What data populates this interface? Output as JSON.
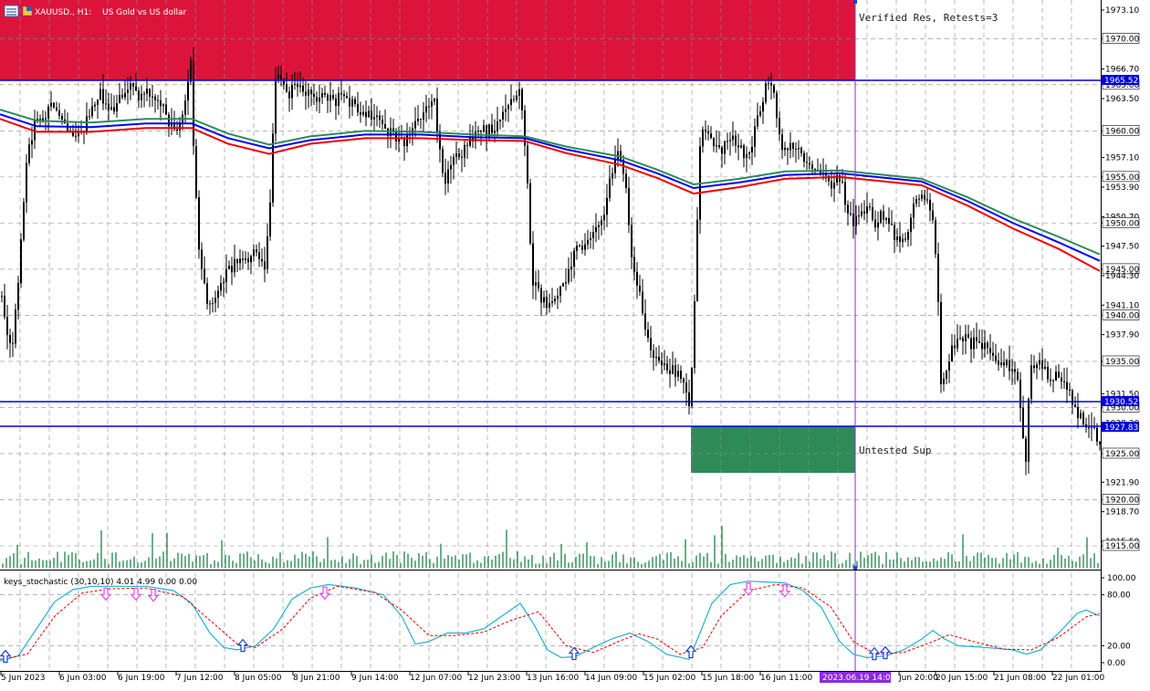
{
  "title_bar": {
    "symbol": "XAUUSD., H1:",
    "description": "US Gold vs US dollar",
    "menu_icon": "chart-menu-icon"
  },
  "colors": {
    "background": "#ffffff",
    "grid": "#8c8c8c",
    "candle": "#000000",
    "resistance_zone": "#dc143c",
    "support_zone": "#2e8b57",
    "level_line": "#0000dd",
    "price_label_bg": "#0000dd",
    "ma_green": "#2e8b57",
    "ma_blue": "#0000ff",
    "ma_red": "#ee0000",
    "volume": "#2e8b57",
    "stoch_main": "#20b2d0",
    "stoch_signal": "#e00000",
    "arrow_up": "#1e3fd0",
    "arrow_down": "#ee44ee",
    "vline": "#8a2be2"
  },
  "zones": {
    "resistance_label": "Verified Res, Retests=3",
    "support_label": "Untested Sup"
  },
  "price_labels": {
    "res_level": "1965.52",
    "sup_level_upper": "1930.52",
    "sup_level_lower": "1927.83"
  },
  "price_axis": {
    "ticks": [
      "1973.10",
      "1970.00",
      "1966.70",
      "1965.00",
      "1963.50",
      "1960.00",
      "1957.10",
      "1955.00",
      "1953.90",
      "1950.70",
      "1950.00",
      "1947.50",
      "1945.00",
      "1944.30",
      "1941.10",
      "1940.00",
      "1937.90",
      "1935.00",
      "1931.50",
      "1930.00",
      "1928.30",
      "1925.00",
      "1921.90",
      "1920.00",
      "1918.70",
      "1915.50",
      "1915.00"
    ]
  },
  "time_axis": {
    "labels": [
      "5 Jun 2023",
      "6 Jun 03:00",
      "6 Jun 19:00",
      "7 Jun 12:00",
      "8 Jun 05:00",
      "8 Jun 21:00",
      "9 Jun 14:00",
      "12 Jun 07:00",
      "12 Jun 23:00",
      "13 Jun 16:00",
      "14 Jun 09:00",
      "15 Jun 02:00",
      "15 Jun 18:00",
      "16 Jun 11:00",
      "2023.06.19 14:00",
      "Jun 20:00",
      "20 Jun 15:00",
      "21 Jun 08:00",
      "22 Jun 01:00"
    ]
  },
  "stochastic": {
    "label": "keys_stochastic (30,10,10) 4.01 4.99 0.00 0.00",
    "axis": [
      "100.00",
      "80.00",
      "20.00",
      "0.00"
    ]
  },
  "chart_data": {
    "type": "candlestick",
    "symbol": "XAUUSD.",
    "timeframe": "H1",
    "ylim": [
      1913.0,
      1974.5
    ],
    "levels": {
      "resistance_zone": [
        1965.52,
        1974.5
      ],
      "support_zone": [
        1922.8,
        1927.83
      ],
      "lines": [
        1965.52,
        1930.52,
        1927.83
      ]
    },
    "close_path": [
      [
        0,
        1942
      ],
      [
        6,
        1939
      ],
      [
        12,
        1935
      ],
      [
        20,
        1945
      ],
      [
        28,
        1957
      ],
      [
        38,
        1961
      ],
      [
        50,
        1962
      ],
      [
        60,
        1963
      ],
      [
        70,
        1961
      ],
      [
        80,
        1960
      ],
      [
        90,
        1960
      ],
      [
        100,
        1963
      ],
      [
        110,
        1964
      ],
      [
        120,
        1962
      ],
      [
        130,
        1964
      ],
      [
        140,
        1965
      ],
      [
        150,
        1964
      ],
      [
        160,
        1964
      ],
      [
        170,
        1963
      ],
      [
        180,
        1962
      ],
      [
        190,
        1960
      ],
      [
        200,
        1962
      ],
      [
        208,
        1967
      ],
      [
        212,
        1956
      ],
      [
        218,
        1946
      ],
      [
        225,
        1942
      ],
      [
        232,
        1941
      ],
      [
        240,
        1943
      ],
      [
        250,
        1945
      ],
      [
        260,
        1946
      ],
      [
        270,
        1946
      ],
      [
        280,
        1947
      ],
      [
        290,
        1945
      ],
      [
        296,
        1954
      ],
      [
        300,
        1966
      ],
      [
        306,
        1966
      ],
      [
        315,
        1964
      ],
      [
        325,
        1965
      ],
      [
        335,
        1964
      ],
      [
        345,
        1963
      ],
      [
        355,
        1964
      ],
      [
        365,
        1963
      ],
      [
        375,
        1964
      ],
      [
        385,
        1963
      ],
      [
        395,
        1962
      ],
      [
        405,
        1962
      ],
      [
        415,
        1961
      ],
      [
        425,
        1960
      ],
      [
        435,
        1959
      ],
      [
        445,
        1959
      ],
      [
        455,
        1961
      ],
      [
        465,
        1962
      ],
      [
        475,
        1963
      ],
      [
        485,
        1954
      ],
      [
        492,
        1956
      ],
      [
        500,
        1957
      ],
      [
        510,
        1958
      ],
      [
        520,
        1960
      ],
      [
        530,
        1960
      ],
      [
        540,
        1960
      ],
      [
        550,
        1962
      ],
      [
        560,
        1963
      ],
      [
        568,
        1965
      ],
      [
        576,
        1956
      ],
      [
        582,
        1944
      ],
      [
        590,
        1942
      ],
      [
        598,
        1941
      ],
      [
        606,
        1942
      ],
      [
        614,
        1943
      ],
      [
        622,
        1945
      ],
      [
        630,
        1947
      ],
      [
        640,
        1948
      ],
      [
        650,
        1949
      ],
      [
        660,
        1950
      ],
      [
        668,
        1955
      ],
      [
        676,
        1958
      ],
      [
        684,
        1955
      ],
      [
        692,
        1945
      ],
      [
        700,
        1942
      ],
      [
        708,
        1938
      ],
      [
        716,
        1935
      ],
      [
        724,
        1935
      ],
      [
        732,
        1934
      ],
      [
        740,
        1934
      ],
      [
        748,
        1933
      ],
      [
        755,
        1929
      ],
      [
        760,
        1942
      ],
      [
        766,
        1959
      ],
      [
        772,
        1960
      ],
      [
        780,
        1959
      ],
      [
        790,
        1958
      ],
      [
        800,
        1959
      ],
      [
        810,
        1958
      ],
      [
        820,
        1957
      ],
      [
        828,
        1961
      ],
      [
        836,
        1964
      ],
      [
        842,
        1966
      ],
      [
        848,
        1963
      ],
      [
        855,
        1958
      ],
      [
        862,
        1958
      ],
      [
        870,
        1958
      ],
      [
        880,
        1957
      ],
      [
        890,
        1956
      ],
      [
        900,
        1956
      ],
      [
        910,
        1954
      ],
      [
        920,
        1955
      ],
      [
        928,
        1951
      ],
      [
        935,
        1950
      ],
      [
        942,
        1951
      ],
      [
        950,
        1952
      ],
      [
        958,
        1950
      ],
      [
        966,
        1951
      ],
      [
        975,
        1950
      ],
      [
        982,
        1948
      ],
      [
        990,
        1948
      ],
      [
        998,
        1951
      ],
      [
        1006,
        1953
      ],
      [
        1014,
        1953
      ],
      [
        1020,
        1951
      ],
      [
        1026,
        1945
      ],
      [
        1030,
        1932
      ],
      [
        1036,
        1934
      ],
      [
        1044,
        1937
      ],
      [
        1052,
        1938
      ],
      [
        1060,
        1937
      ],
      [
        1068,
        1937
      ],
      [
        1076,
        1937
      ],
      [
        1084,
        1936
      ],
      [
        1092,
        1935
      ],
      [
        1100,
        1935
      ],
      [
        1108,
        1934
      ],
      [
        1116,
        1932
      ],
      [
        1122,
        1923
      ],
      [
        1128,
        1934
      ],
      [
        1136,
        1935
      ],
      [
        1144,
        1934
      ],
      [
        1152,
        1933
      ],
      [
        1160,
        1934
      ],
      [
        1168,
        1932
      ],
      [
        1176,
        1930
      ],
      [
        1184,
        1929
      ],
      [
        1192,
        1928
      ],
      [
        1200,
        1927
      ],
      [
        1206,
        1926
      ]
    ],
    "ma_green": [
      [
        0,
        1962.3
      ],
      [
        40,
        1961.1
      ],
      [
        100,
        1960.9
      ],
      [
        160,
        1961.3
      ],
      [
        210,
        1961.3
      ],
      [
        250,
        1959.7
      ],
      [
        295,
        1958.5
      ],
      [
        340,
        1959.4
      ],
      [
        400,
        1960.0
      ],
      [
        460,
        1959.9
      ],
      [
        520,
        1959.6
      ],
      [
        575,
        1959.4
      ],
      [
        620,
        1958.3
      ],
      [
        680,
        1957.2
      ],
      [
        720,
        1955.8
      ],
      [
        760,
        1954.2
      ],
      [
        810,
        1954.8
      ],
      [
        860,
        1955.6
      ],
      [
        920,
        1955.7
      ],
      [
        970,
        1955.2
      ],
      [
        1010,
        1954.8
      ],
      [
        1060,
        1952.8
      ],
      [
        1110,
        1950.5
      ],
      [
        1160,
        1948.5
      ],
      [
        1205,
        1946.6
      ]
    ],
    "ma_blue": [
      [
        0,
        1961.8
      ],
      [
        40,
        1960.5
      ],
      [
        100,
        1960.4
      ],
      [
        160,
        1960.8
      ],
      [
        210,
        1960.8
      ],
      [
        250,
        1959.2
      ],
      [
        295,
        1958.1
      ],
      [
        340,
        1959.0
      ],
      [
        400,
        1959.6
      ],
      [
        460,
        1959.6
      ],
      [
        520,
        1959.3
      ],
      [
        575,
        1959.2
      ],
      [
        620,
        1958.0
      ],
      [
        680,
        1956.8
      ],
      [
        720,
        1955.4
      ],
      [
        760,
        1953.8
      ],
      [
        810,
        1954.4
      ],
      [
        860,
        1955.2
      ],
      [
        920,
        1955.4
      ],
      [
        970,
        1954.9
      ],
      [
        1010,
        1954.5
      ],
      [
        1060,
        1952.4
      ],
      [
        1110,
        1950.0
      ],
      [
        1160,
        1947.9
      ],
      [
        1205,
        1945.9
      ]
    ],
    "ma_red": [
      [
        0,
        1961.3
      ],
      [
        40,
        1959.9
      ],
      [
        100,
        1959.9
      ],
      [
        160,
        1960.3
      ],
      [
        210,
        1960.3
      ],
      [
        250,
        1958.6
      ],
      [
        295,
        1957.5
      ],
      [
        340,
        1958.6
      ],
      [
        400,
        1959.2
      ],
      [
        460,
        1959.2
      ],
      [
        520,
        1959.0
      ],
      [
        575,
        1958.9
      ],
      [
        620,
        1957.6
      ],
      [
        680,
        1956.3
      ],
      [
        720,
        1954.9
      ],
      [
        760,
        1953.2
      ],
      [
        810,
        1953.9
      ],
      [
        860,
        1954.8
      ],
      [
        920,
        1955.0
      ],
      [
        970,
        1954.5
      ],
      [
        1010,
        1954.1
      ],
      [
        1060,
        1951.9
      ],
      [
        1110,
        1949.4
      ],
      [
        1160,
        1947.2
      ],
      [
        1205,
        1944.8
      ]
    ],
    "stoch_main": [
      [
        0,
        2
      ],
      [
        20,
        8
      ],
      [
        40,
        40
      ],
      [
        60,
        72
      ],
      [
        80,
        86
      ],
      [
        100,
        90
      ],
      [
        130,
        90
      ],
      [
        160,
        90
      ],
      [
        190,
        85
      ],
      [
        210,
        70
      ],
      [
        230,
        35
      ],
      [
        245,
        18
      ],
      [
        260,
        15
      ],
      [
        280,
        20
      ],
      [
        300,
        40
      ],
      [
        320,
        75
      ],
      [
        340,
        88
      ],
      [
        360,
        92
      ],
      [
        390,
        88
      ],
      [
        420,
        80
      ],
      [
        440,
        55
      ],
      [
        455,
        22
      ],
      [
        470,
        25
      ],
      [
        490,
        35
      ],
      [
        510,
        35
      ],
      [
        530,
        40
      ],
      [
        550,
        55
      ],
      [
        570,
        70
      ],
      [
        585,
        45
      ],
      [
        600,
        15
      ],
      [
        615,
        6
      ],
      [
        630,
        7
      ],
      [
        650,
        18
      ],
      [
        670,
        28
      ],
      [
        690,
        35
      ],
      [
        710,
        25
      ],
      [
        730,
        10
      ],
      [
        755,
        4
      ],
      [
        765,
        30
      ],
      [
        780,
        70
      ],
      [
        800,
        92
      ],
      [
        820,
        96
      ],
      [
        840,
        95
      ],
      [
        860,
        94
      ],
      [
        880,
        85
      ],
      [
        900,
        65
      ],
      [
        920,
        25
      ],
      [
        935,
        10
      ],
      [
        950,
        6
      ],
      [
        970,
        8
      ],
      [
        990,
        15
      ],
      [
        1010,
        28
      ],
      [
        1022,
        38
      ],
      [
        1035,
        28
      ],
      [
        1050,
        20
      ],
      [
        1080,
        18
      ],
      [
        1110,
        15
      ],
      [
        1125,
        10
      ],
      [
        1140,
        15
      ],
      [
        1160,
        35
      ],
      [
        1180,
        58
      ],
      [
        1190,
        62
      ],
      [
        1205,
        55
      ]
    ],
    "stoch_signal": [
      [
        0,
        4
      ],
      [
        30,
        10
      ],
      [
        60,
        55
      ],
      [
        90,
        82
      ],
      [
        120,
        87
      ],
      [
        160,
        88
      ],
      [
        200,
        78
      ],
      [
        230,
        50
      ],
      [
        260,
        22
      ],
      [
        280,
        18
      ],
      [
        310,
        40
      ],
      [
        340,
        76
      ],
      [
        370,
        90
      ],
      [
        410,
        83
      ],
      [
        440,
        62
      ],
      [
        470,
        32
      ],
      [
        500,
        32
      ],
      [
        530,
        36
      ],
      [
        560,
        50
      ],
      [
        590,
        60
      ],
      [
        620,
        20
      ],
      [
        650,
        12
      ],
      [
        680,
        26
      ],
      [
        700,
        34
      ],
      [
        720,
        28
      ],
      [
        745,
        10
      ],
      [
        770,
        18
      ],
      [
        790,
        55
      ],
      [
        820,
        85
      ],
      [
        850,
        92
      ],
      [
        880,
        88
      ],
      [
        910,
        66
      ],
      [
        935,
        25
      ],
      [
        960,
        10
      ],
      [
        990,
        12
      ],
      [
        1020,
        24
      ],
      [
        1040,
        33
      ],
      [
        1070,
        24
      ],
      [
        1100,
        16
      ],
      [
        1130,
        15
      ],
      [
        1160,
        30
      ],
      [
        1190,
        54
      ],
      [
        1205,
        58
      ]
    ],
    "stoch_arrows": [
      {
        "x": 6,
        "dir": "up"
      },
      {
        "x": 116,
        "dir": "down"
      },
      {
        "x": 149,
        "dir": "down"
      },
      {
        "x": 168,
        "dir": "down"
      },
      {
        "x": 266,
        "dir": "up"
      },
      {
        "x": 356,
        "dir": "down"
      },
      {
        "x": 629,
        "dir": "up"
      },
      {
        "x": 757,
        "dir": "up"
      },
      {
        "x": 820,
        "dir": "down"
      },
      {
        "x": 860,
        "dir": "down"
      },
      {
        "x": 958,
        "dir": "up"
      },
      {
        "x": 970,
        "dir": "up"
      }
    ]
  }
}
